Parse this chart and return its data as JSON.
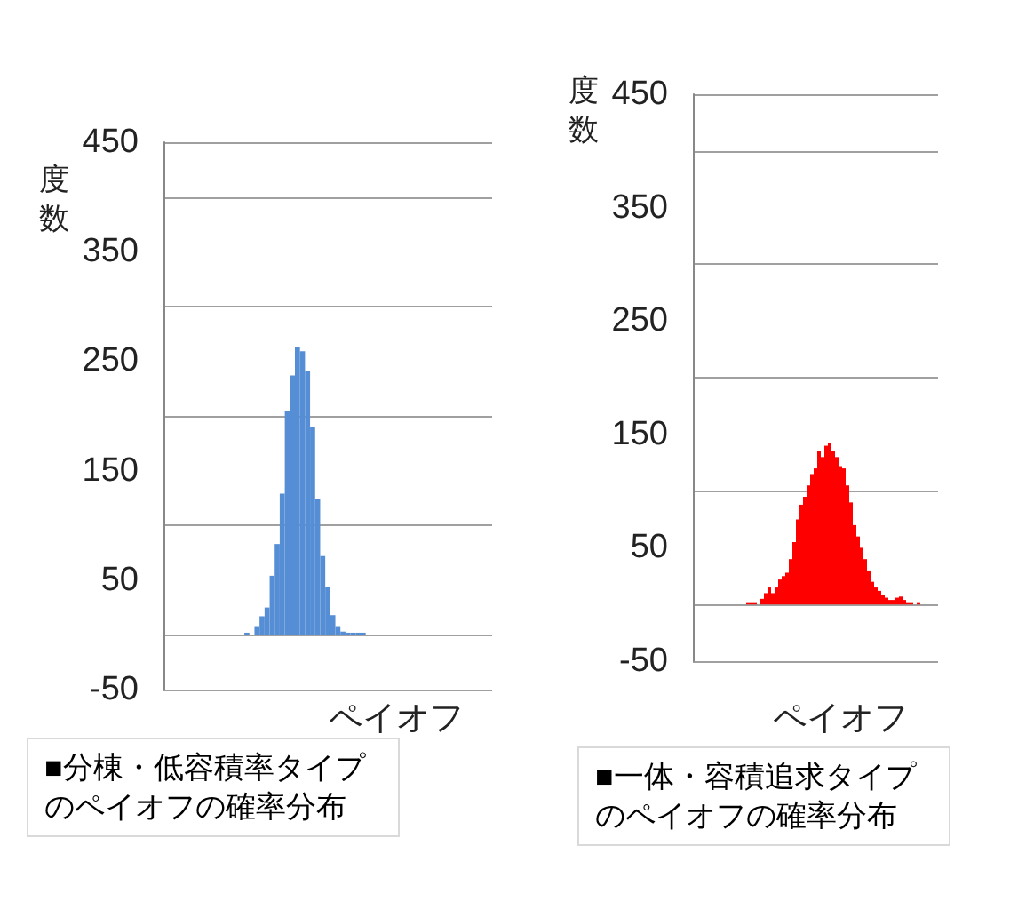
{
  "chart_data": [
    {
      "type": "bar",
      "title": "■分棟・低容積率タイプのペイオフの確率分布",
      "xlabel": "ペイオフ",
      "ylabel": "度数",
      "color": "#558ed5",
      "categories": [
        null,
        null,
        null,
        null,
        null,
        null,
        null,
        null,
        null,
        null,
        null,
        null,
        null,
        null,
        null,
        null,
        null,
        null,
        null,
        null,
        null,
        null,
        null,
        null,
        null,
        null,
        null,
        null,
        null,
        null,
        null,
        null,
        null,
        null,
        null,
        null,
        null,
        null,
        null,
        null,
        null,
        null,
        null,
        null,
        null,
        null,
        null,
        null,
        null,
        null,
        null,
        null,
        null,
        null,
        null,
        null,
        null,
        null,
        null,
        null,
        null,
        null,
        null,
        null,
        null
      ],
      "values": [
        null,
        null,
        null,
        null,
        null,
        null,
        null,
        null,
        null,
        null,
        null,
        null,
        null,
        null,
        null,
        null,
        2,
        null,
        8,
        17,
        25,
        54,
        83,
        129,
        204,
        237,
        263,
        259,
        241,
        190,
        124,
        72,
        44,
        18,
        8,
        3,
        2,
        2,
        2,
        2,
        null,
        null,
        null,
        null,
        null,
        null,
        null,
        null,
        null,
        null,
        null,
        null,
        null,
        null,
        null,
        null,
        null,
        null,
        null,
        null,
        null,
        null,
        null,
        null,
        null
      ],
      "ylim": [
        -50,
        450
      ],
      "yticks": [
        -50,
        50,
        150,
        250,
        350,
        450
      ],
      "grid": "y",
      "tick_labels": "y"
    },
    {
      "type": "bar",
      "title": "■一体・容積追求タイプのペイオフの確率分布",
      "xlabel": "ペイオフ",
      "ylabel": "度数",
      "color": "#ff0000",
      "categories": [
        null,
        null,
        null,
        null,
        null,
        null,
        null,
        null,
        null,
        null,
        null,
        null,
        null,
        null,
        null,
        null,
        null,
        null,
        null,
        null,
        null,
        null,
        null,
        null,
        null,
        null,
        null,
        null,
        null,
        null,
        null,
        null,
        null,
        null,
        null,
        null,
        null,
        null,
        null,
        null,
        null,
        null,
        null,
        null,
        null,
        null,
        null,
        null,
        null,
        null,
        null,
        null,
        null,
        null,
        null,
        null,
        null,
        null,
        null,
        null,
        null,
        null,
        null,
        null,
        null,
        null,
        null,
        null,
        null
      ],
      "values": [
        null,
        null,
        null,
        null,
        null,
        null,
        null,
        null,
        null,
        null,
        null,
        null,
        null,
        null,
        null,
        2,
        2,
        2,
        null,
        5,
        10,
        15,
        10,
        15,
        22,
        25,
        28,
        40,
        55,
        75,
        88,
        95,
        105,
        115,
        120,
        135,
        130,
        140,
        142,
        135,
        130,
        122,
        120,
        105,
        90,
        70,
        60,
        50,
        40,
        30,
        20,
        15,
        12,
        8,
        6,
        4,
        4,
        6,
        7,
        4,
        2,
        2,
        null,
        2,
        null,
        null,
        null,
        null,
        null
      ],
      "ylim": [
        -50,
        450
      ],
      "yticks": [
        -50,
        50,
        150,
        250,
        350,
        450
      ],
      "grid": "y",
      "tick_labels": "y"
    }
  ]
}
